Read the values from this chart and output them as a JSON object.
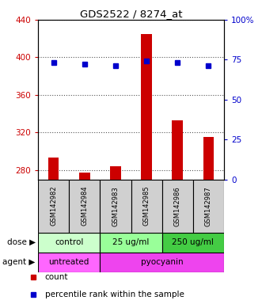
{
  "title": "GDS2522 / 8274_at",
  "samples": [
    "GSM142982",
    "GSM142984",
    "GSM142983",
    "GSM142985",
    "GSM142986",
    "GSM142987"
  ],
  "counts": [
    293,
    277,
    284,
    425,
    333,
    315
  ],
  "percentile_ranks": [
    73,
    72,
    71,
    74,
    73,
    71
  ],
  "ylim_left": [
    270,
    440
  ],
  "ylim_right": [
    0,
    100
  ],
  "yticks_left": [
    280,
    320,
    360,
    400,
    440
  ],
  "yticks_right": [
    0,
    25,
    50,
    75,
    100
  ],
  "ytick_labels_left": [
    "280",
    "320",
    "360",
    "400",
    "440"
  ],
  "ytick_labels_right": [
    "0",
    "25",
    "50",
    "75",
    "100%"
  ],
  "bar_color": "#cc0000",
  "dot_color": "#0000cc",
  "dose_groups": [
    {
      "label": "control",
      "cols": [
        0,
        1
      ],
      "color": "#ccffcc"
    },
    {
      "label": "25 ug/ml",
      "cols": [
        2,
        3
      ],
      "color": "#99ff99"
    },
    {
      "label": "250 ug/ml",
      "cols": [
        4,
        5
      ],
      "color": "#44cc44"
    }
  ],
  "agent_groups": [
    {
      "label": "untreated",
      "cols": [
        0,
        1
      ],
      "color": "#ff66ff"
    },
    {
      "label": "pyocyanin",
      "cols": [
        2,
        3,
        4,
        5
      ],
      "color": "#ee44ee"
    }
  ],
  "dose_label": "dose",
  "agent_label": "agent",
  "legend_count_label": "count",
  "legend_pct_label": "percentile rank within the sample",
  "background_color": "#ffffff",
  "plot_bg_color": "#ffffff",
  "grid_color": "#555555",
  "label_color_left": "#cc0000",
  "label_color_right": "#0000cc"
}
